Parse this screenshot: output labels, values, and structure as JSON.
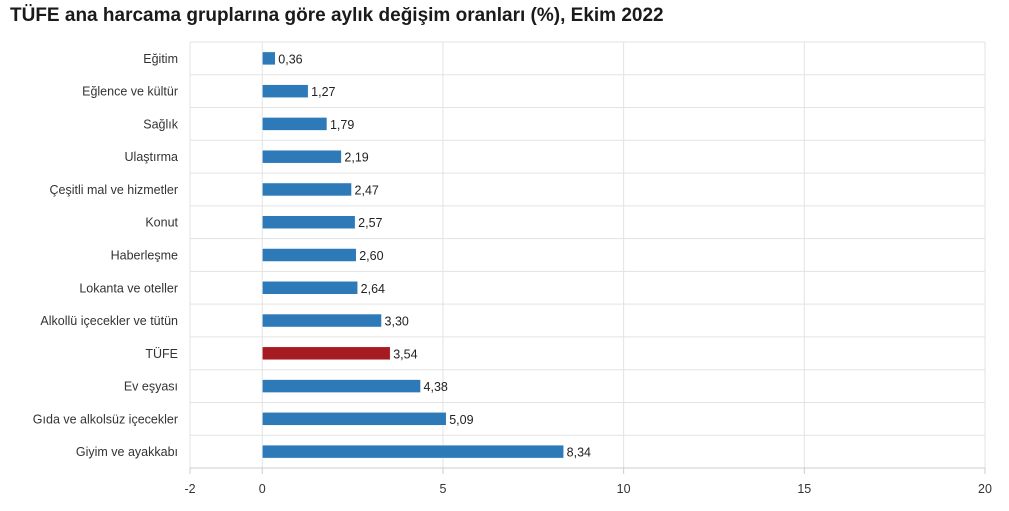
{
  "chart_data": {
    "type": "bar",
    "orientation": "horizontal",
    "title": "TÜFE ana harcama gruplarına göre aylık değişim oranları (%), Ekim 2022",
    "categories": [
      "Eğitim",
      "Eğlence ve kültür",
      "Sağlık",
      "Ulaştırma",
      "Çeşitli mal ve hizmetler",
      "Konut",
      "Haberleşme",
      "Lokanta ve oteller",
      "Alkollü içecekler ve tütün",
      "TÜFE",
      "Ev eşyası",
      "Gıda ve alkolsüz içecekler",
      "Giyim ve ayakkabı"
    ],
    "values": [
      0.36,
      1.27,
      1.79,
      2.19,
      2.47,
      2.57,
      2.6,
      2.64,
      3.3,
      3.54,
      4.38,
      5.09,
      8.34
    ],
    "value_labels": [
      "0,36",
      "1,27",
      "1,79",
      "2,19",
      "2,47",
      "2,57",
      "2,60",
      "2,64",
      "3,30",
      "3,54",
      "4,38",
      "5,09",
      "8,34"
    ],
    "highlight_category": "TÜFE",
    "xlim": [
      -2,
      20
    ],
    "xticks": [
      -2,
      0,
      5,
      10,
      15,
      20
    ],
    "xtick_labels": [
      "-2",
      "0",
      "5",
      "10",
      "15",
      "20"
    ],
    "grid": true,
    "legend": "none",
    "colors": {
      "bar": "#2e7ab8",
      "highlight": "#a61b22",
      "grid": "#e3e3e3",
      "axis": "#cccccc"
    }
  }
}
